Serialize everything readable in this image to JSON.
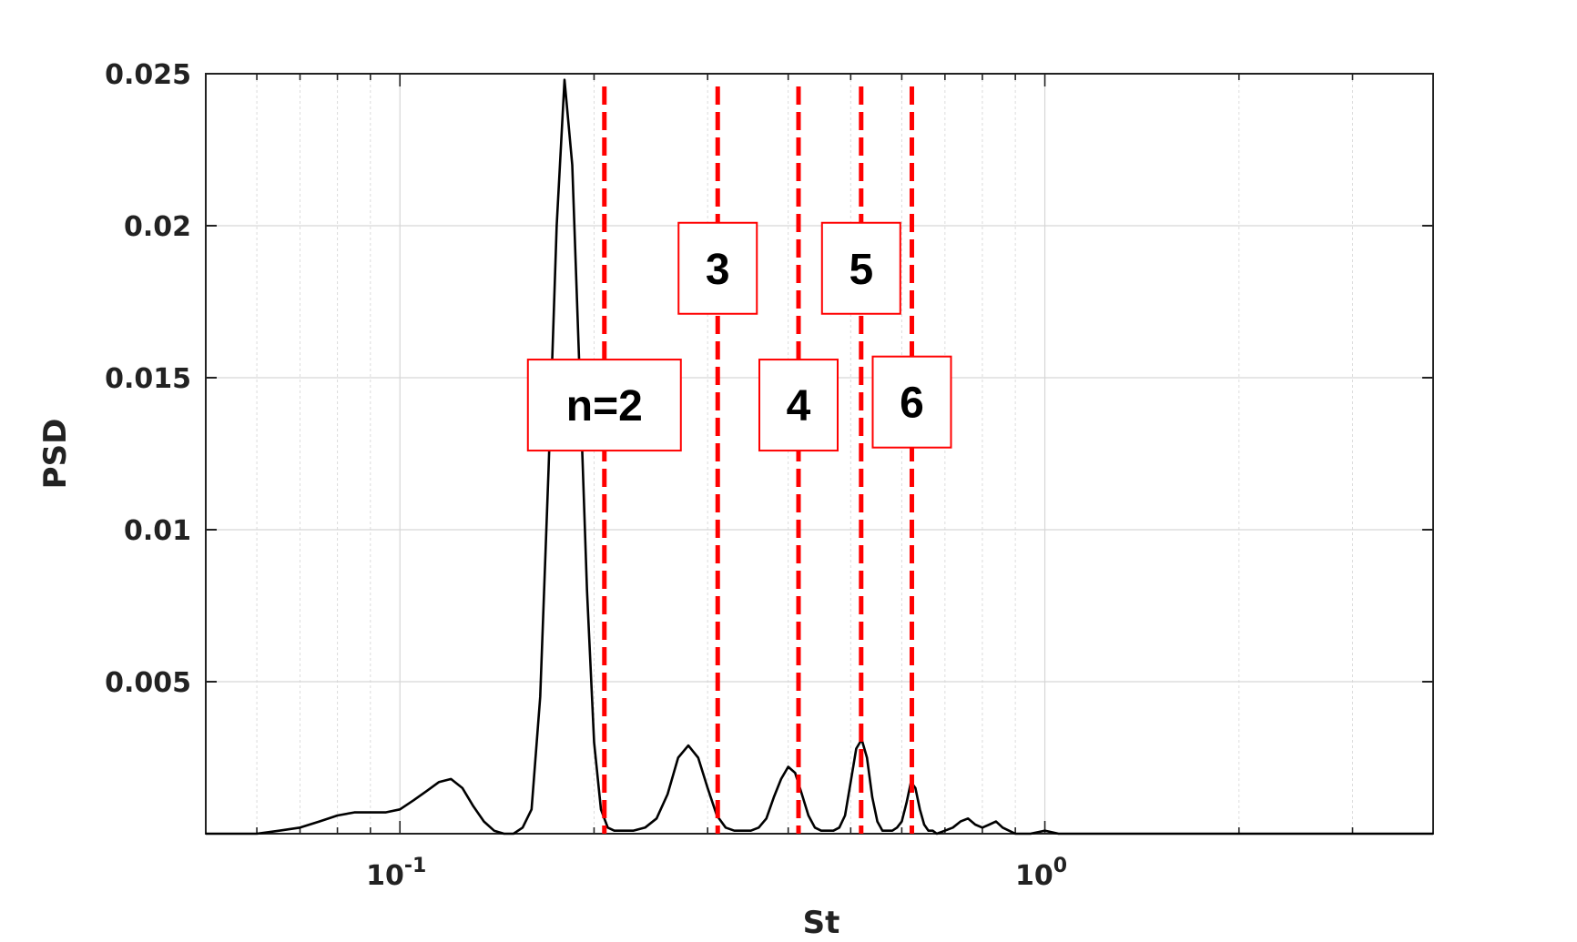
{
  "chart_data": {
    "type": "line",
    "xlabel": "St",
    "ylabel": "PSD",
    "xscale": "log",
    "xlim": [
      0.05,
      4.0
    ],
    "ylim": [
      0,
      0.025
    ],
    "grid": true,
    "minor_grid_x": true,
    "x_tick_labels": [
      {
        "value": 0.1,
        "base": "10",
        "exp": "-1"
      },
      {
        "value": 1.0,
        "base": "10",
        "exp": "0"
      }
    ],
    "y_ticks": [
      0.005,
      0.01,
      0.015,
      0.02,
      0.025
    ],
    "y_tick_labels": [
      "0.005",
      "0.01",
      "0.015",
      "0.02",
      "0.025"
    ],
    "series": [
      {
        "color": "#000000",
        "x": [
          0.05,
          0.06,
          0.065,
          0.07,
          0.075,
          0.08,
          0.085,
          0.09,
          0.095,
          0.1,
          0.105,
          0.11,
          0.115,
          0.12,
          0.125,
          0.13,
          0.135,
          0.14,
          0.145,
          0.15,
          0.155,
          0.16,
          0.165,
          0.17,
          0.175,
          0.18,
          0.185,
          0.19,
          0.195,
          0.2,
          0.205,
          0.21,
          0.215,
          0.22,
          0.225,
          0.23,
          0.24,
          0.25,
          0.26,
          0.27,
          0.28,
          0.29,
          0.3,
          0.31,
          0.32,
          0.33,
          0.34,
          0.35,
          0.36,
          0.37,
          0.38,
          0.39,
          0.4,
          0.41,
          0.42,
          0.43,
          0.44,
          0.45,
          0.46,
          0.47,
          0.48,
          0.49,
          0.5,
          0.51,
          0.52,
          0.53,
          0.54,
          0.55,
          0.56,
          0.57,
          0.58,
          0.59,
          0.6,
          0.61,
          0.62,
          0.63,
          0.64,
          0.65,
          0.66,
          0.67,
          0.68,
          0.7,
          0.72,
          0.74,
          0.76,
          0.78,
          0.8,
          0.82,
          0.84,
          0.86,
          0.88,
          0.9,
          0.95,
          1.0,
          1.05,
          1.1,
          1.2,
          1.5,
          2.0,
          2.5,
          3.0,
          3.5,
          4.0
        ],
        "y": [
          0.0,
          0.0,
          0.0001,
          0.0002,
          0.0004,
          0.0006,
          0.0007,
          0.0007,
          0.0007,
          0.0008,
          0.0011,
          0.0014,
          0.0017,
          0.0018,
          0.0015,
          0.0009,
          0.0004,
          0.0001,
          0.0,
          0.0,
          0.0002,
          0.0008,
          0.0045,
          0.012,
          0.02,
          0.0248,
          0.022,
          0.015,
          0.008,
          0.003,
          0.0008,
          0.0002,
          0.0001,
          0.0001,
          0.0001,
          0.0001,
          0.0002,
          0.0005,
          0.0013,
          0.0025,
          0.0029,
          0.0025,
          0.0015,
          0.0006,
          0.0002,
          0.0001,
          0.0001,
          0.0001,
          0.0002,
          0.0005,
          0.0012,
          0.0018,
          0.0022,
          0.002,
          0.0013,
          0.0006,
          0.0002,
          0.0001,
          0.0001,
          0.0001,
          0.0002,
          0.0006,
          0.0017,
          0.0028,
          0.0031,
          0.0025,
          0.0012,
          0.0004,
          0.0001,
          0.0001,
          0.0001,
          0.0002,
          0.0004,
          0.001,
          0.0017,
          0.0015,
          0.0008,
          0.0003,
          0.0001,
          0.0001,
          0.0,
          0.0001,
          0.0002,
          0.0004,
          0.0005,
          0.0003,
          0.0002,
          0.0003,
          0.0004,
          0.0002,
          0.0001,
          0.0,
          0.0,
          0.0001,
          0.0,
          0.0,
          0.0,
          0.0,
          0.0,
          0.0,
          0.0,
          0.0,
          0.0
        ]
      }
    ],
    "harmonic_lines": [
      {
        "x": 0.2075,
        "label": "n=2",
        "label_y": 0.0141
      },
      {
        "x": 0.311,
        "label": "3",
        "label_y": 0.0186
      },
      {
        "x": 0.415,
        "label": "4",
        "label_y": 0.0141
      },
      {
        "x": 0.519,
        "label": "5",
        "label_y": 0.0186
      },
      {
        "x": 0.622,
        "label": "6",
        "label_y": 0.0142
      }
    ],
    "harmonic_color": "#ff0000"
  }
}
